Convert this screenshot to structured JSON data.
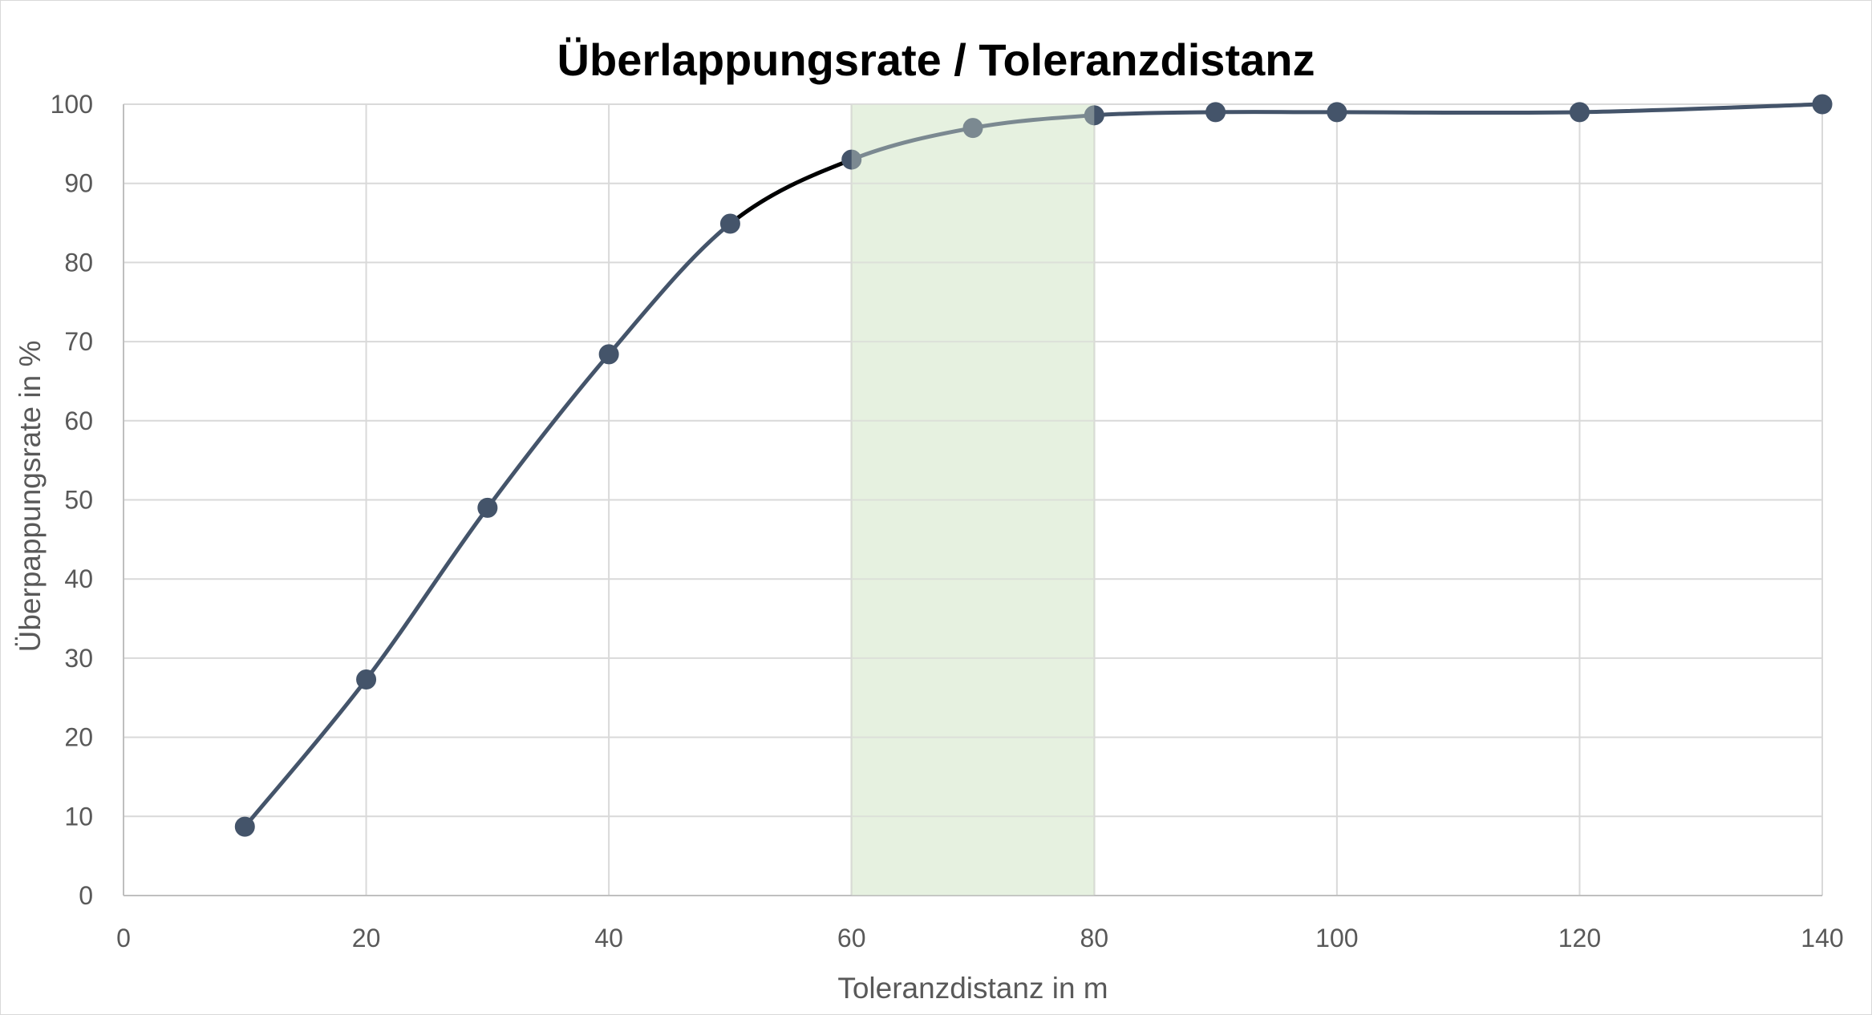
{
  "chart_data": {
    "type": "line",
    "title": "Überlappungsrate / Toleranzdistanz",
    "xlabel": "Toleranzdistanz in m",
    "ylabel": "Überpappungsrate in %",
    "xlim": [
      0,
      140
    ],
    "ylim": [
      0,
      100
    ],
    "x_ticks": [
      0,
      20,
      40,
      60,
      80,
      100,
      120,
      140
    ],
    "y_ticks": [
      0,
      10,
      20,
      30,
      40,
      50,
      60,
      70,
      80,
      90,
      100
    ],
    "grid": true,
    "legend": "none",
    "series": [
      {
        "x": [
          10,
          20,
          30,
          40,
          50,
          60,
          70,
          80,
          90,
          100,
          120,
          140
        ],
        "y": [
          8.7,
          27.3,
          49.0,
          68.4,
          84.9,
          93.0,
          97.0,
          98.6,
          99.0,
          99.0,
          99.0,
          100.0
        ]
      }
    ],
    "highlight_band": {
      "x_from": 60,
      "x_to": 80,
      "color": "#e2efda"
    },
    "colors": {
      "series": "#44546a",
      "highlight_segment": "#000000",
      "grid": "#d9d9d9",
      "axis": "#bfbfbf"
    }
  }
}
